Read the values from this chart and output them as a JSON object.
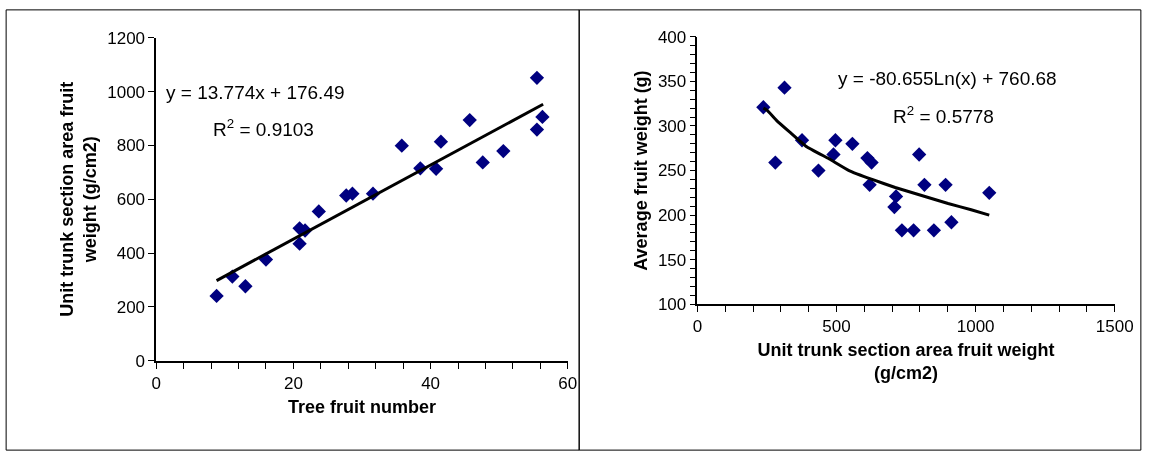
{
  "chart_data": [
    {
      "type": "scatter",
      "xlabel": "Tree fruit number",
      "ylabel": "Unit trunk section area fruit weight (g/cm2)",
      "marker": "diamond",
      "xlim": [
        0,
        60
      ],
      "ylim": [
        0,
        1200
      ],
      "xticks": [
        0,
        {
          "value": 4,
          "label": null
        },
        {
          "value": 8,
          "label": null
        },
        {
          "value": 12,
          "label": null
        },
        {
          "value": 16,
          "label": null
        },
        20,
        {
          "value": 24,
          "label": null
        },
        {
          "value": 28,
          "label": null
        },
        {
          "value": 32,
          "label": null
        },
        {
          "value": 36,
          "label": null
        },
        40,
        {
          "value": 44,
          "label": null
        },
        {
          "value": 48,
          "label": null
        },
        {
          "value": 52,
          "label": null
        },
        {
          "value": 56,
          "label": null
        },
        60
      ],
      "yticks": [
        0,
        200,
        400,
        600,
        800,
        1000,
        1200
      ],
      "series": [
        {
          "color": "#000080",
          "x": [
            8.8,
            11.1,
            13.0,
            16.0,
            20.9,
            20.9,
            21.7,
            23.7,
            27.7,
            28.6,
            31.6,
            35.8,
            38.5,
            40.8,
            41.5,
            45.7,
            47.6,
            50.6,
            55.5,
            55.5,
            56.3
          ],
          "values": [
            241,
            313,
            277,
            376,
            492,
            435,
            484,
            555,
            614,
            621,
            621,
            799,
            715,
            713,
            814,
            894,
            737,
            779,
            859,
            1051,
            906
          ]
        },
        {
          "type": "line",
          "color": "#000000",
          "marker": "none",
          "x": [
            8.8,
            56.4
          ],
          "values": [
            298,
            953
          ]
        }
      ],
      "annotations": [
        "y = 13.774x + 176.49",
        "R$^{2}$ = 0.9103"
      ]
    },
    {
      "type": "scatter",
      "xlabel": "Unit trunk section area fruit weight (g/cm2)",
      "ylabel": "Average fruit weight (g)",
      "marker": "diamond",
      "xlim": [
        0,
        1500
      ],
      "ylim": [
        100,
        400
      ],
      "xticks": [
        0,
        {
          "value": 100,
          "label": null
        },
        {
          "value": 200,
          "label": null
        },
        {
          "value": 300,
          "label": null
        },
        {
          "value": 400,
          "label": null
        },
        500,
        {
          "value": 600,
          "label": null
        },
        {
          "value": 700,
          "label": null
        },
        {
          "value": 800,
          "label": null
        },
        {
          "value": 900,
          "label": null
        },
        1000,
        {
          "value": 1100,
          "label": null
        },
        {
          "value": 1200,
          "label": null
        },
        {
          "value": 1300,
          "label": null
        },
        {
          "value": 1400,
          "label": null
        },
        1500
      ],
      "yticks": [
        100,
        {
          "value": 110,
          "label": null
        },
        {
          "value": 120,
          "label": null
        },
        {
          "value": 130,
          "label": null
        },
        {
          "value": 140,
          "label": null
        },
        150,
        {
          "value": 160,
          "label": null
        },
        {
          "value": 170,
          "label": null
        },
        {
          "value": 180,
          "label": null
        },
        {
          "value": 190,
          "label": null
        },
        200,
        {
          "value": 210,
          "label": null
        },
        {
          "value": 220,
          "label": null
        },
        {
          "value": 230,
          "label": null
        },
        {
          "value": 240,
          "label": null
        },
        250,
        {
          "value": 260,
          "label": null
        },
        {
          "value": 270,
          "label": null
        },
        {
          "value": 280,
          "label": null
        },
        {
          "value": 290,
          "label": null
        },
        300,
        {
          "value": 310,
          "label": null
        },
        {
          "value": 320,
          "label": null
        },
        {
          "value": 330,
          "label": null
        },
        {
          "value": 340,
          "label": null
        },
        350,
        {
          "value": 360,
          "label": null
        },
        {
          "value": 370,
          "label": null
        },
        {
          "value": 380,
          "label": null
        },
        {
          "value": 390,
          "label": null
        },
        400
      ],
      "series": [
        {
          "color": "#000080",
          "x": [
            237,
            313,
            280,
            376,
            435,
            489,
            496,
            557,
            611,
            626,
            619,
            714,
            708,
            735,
            777,
            797,
            816,
            850,
            892,
            913,
            1049
          ],
          "values": [
            321,
            343,
            259,
            284,
            250,
            268,
            284,
            280,
            264,
            259,
            234,
            221,
            209,
            183,
            183,
            268,
            234,
            183,
            234,
            192,
            225
          ]
        },
        {
          "type": "line",
          "color": "#000000",
          "marker": "none",
          "x": [
            237,
            249,
            285,
            332,
            391,
            474,
            545,
            628,
            711,
            806,
            901,
            984,
            1049
          ],
          "values": [
            320,
            318,
            306,
            293,
            277,
            263,
            250,
            240,
            231,
            222,
            213,
            206,
            200
          ]
        }
      ],
      "annotations": [
        "y = -80.655Ln(x) + 760.68",
        "R$^{2}$ = 0.5778"
      ]
    }
  ]
}
